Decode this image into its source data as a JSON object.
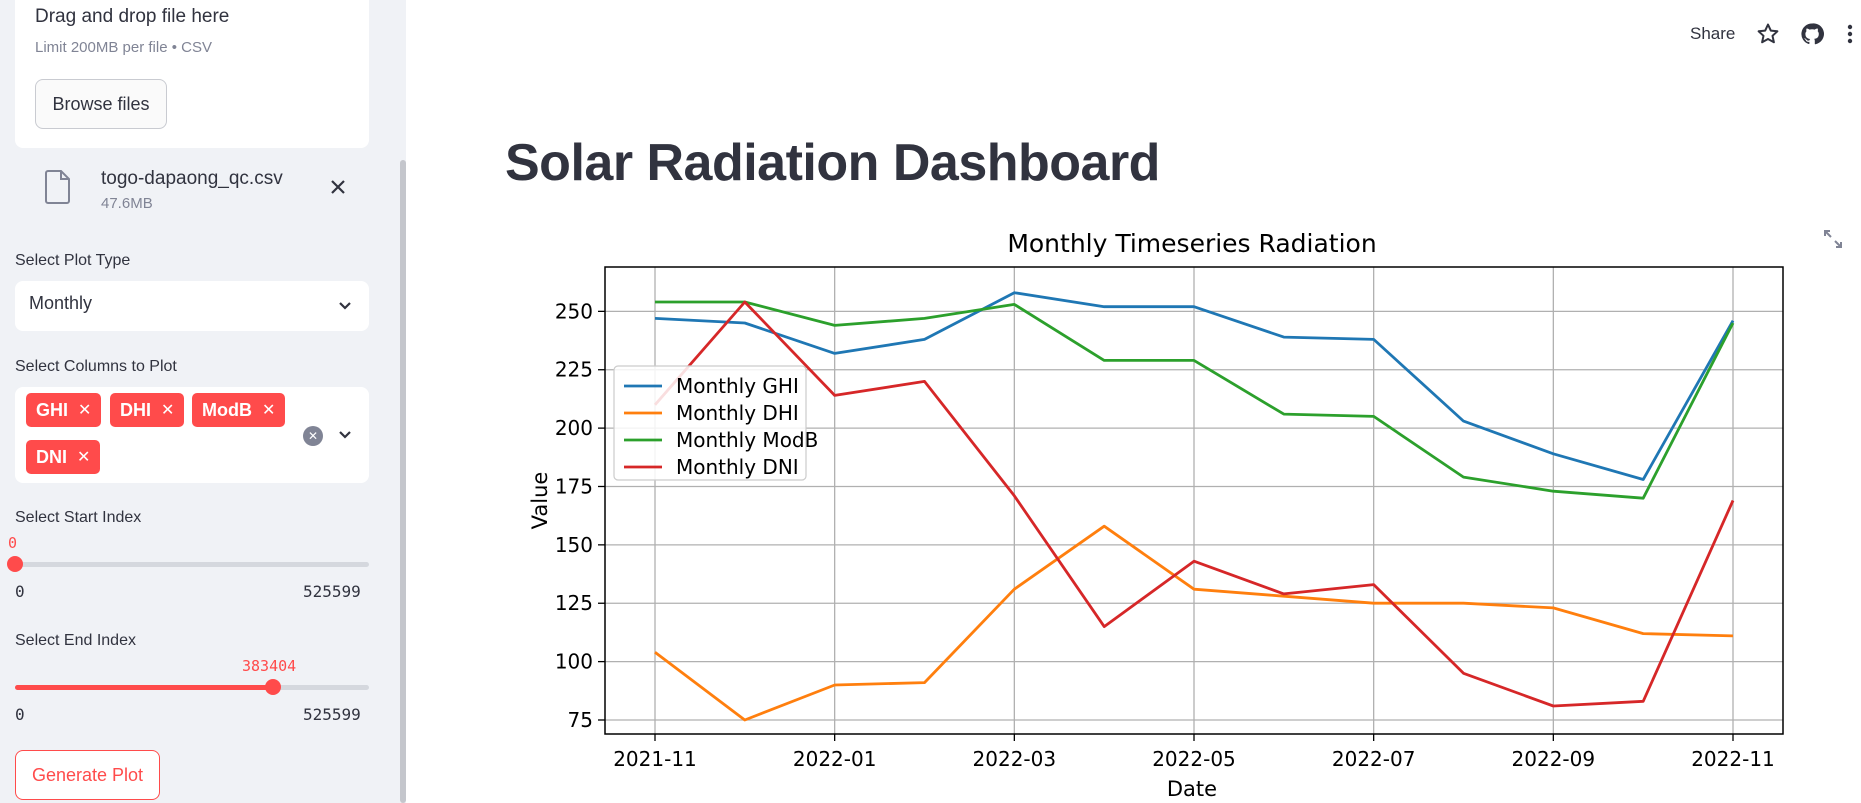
{
  "sidebar": {
    "uploader": {
      "drop_label": "Drag and drop file here",
      "limit_label": "Limit 200MB per file • CSV",
      "browse_label": "Browse files"
    },
    "file": {
      "name": "togo-dapaong_qc.csv",
      "size": "47.6MB"
    },
    "plot_type": {
      "label": "Select Plot Type",
      "value": "Monthly"
    },
    "columns": {
      "label": "Select Columns to Plot",
      "tags": [
        "GHI",
        "DHI",
        "ModB",
        "DNI"
      ]
    },
    "start_index": {
      "label": "Select Start Index",
      "value": "0",
      "min": "0",
      "max": "525599",
      "fraction": 0
    },
    "end_index": {
      "label": "Select End Index",
      "value": "383404",
      "min": "0",
      "max": "525599",
      "fraction": 0.7295
    },
    "generate_label": "Generate Plot"
  },
  "topbar": {
    "share_label": "Share",
    "icons": [
      "star-icon",
      "github-icon",
      "more-icon"
    ]
  },
  "main": {
    "title": "Solar Radiation Dashboard"
  },
  "chart_data": {
    "type": "line",
    "title": "Monthly Timeseries Radiation",
    "xlabel": "Date",
    "ylabel": "Value",
    "x": [
      "2021-11",
      "2021-12",
      "2022-01",
      "2022-02",
      "2022-03",
      "2022-04",
      "2022-05",
      "2022-06",
      "2022-07",
      "2022-08",
      "2022-09",
      "2022-10",
      "2022-11"
    ],
    "x_ticks": [
      "2021-11",
      "2022-01",
      "2022-03",
      "2022-05",
      "2022-07",
      "2022-09",
      "2022-11"
    ],
    "y_ticks": [
      75,
      100,
      125,
      150,
      175,
      200,
      225,
      250
    ],
    "ylim": [
      69,
      269
    ],
    "grid": true,
    "legend_position": "center-left",
    "series": [
      {
        "name": "Monthly GHI",
        "color": "#1f77b4",
        "values": [
          247,
          245,
          232,
          238,
          258,
          252,
          252,
          239,
          238,
          203,
          189,
          178,
          246
        ]
      },
      {
        "name": "Monthly DHI",
        "color": "#ff7f0e",
        "values": [
          104,
          75,
          90,
          91,
          131,
          158,
          131,
          128,
          125,
          125,
          123,
          112,
          111
        ]
      },
      {
        "name": "Monthly ModB",
        "color": "#2ca02c",
        "values": [
          254,
          254,
          244,
          247,
          253,
          229,
          229,
          206,
          205,
          179,
          173,
          170,
          245
        ]
      },
      {
        "name": "Monthly DNI",
        "color": "#d62728",
        "values": [
          210,
          254,
          214,
          220,
          171,
          115,
          143,
          129,
          133,
          95,
          81,
          83,
          169
        ]
      }
    ]
  }
}
